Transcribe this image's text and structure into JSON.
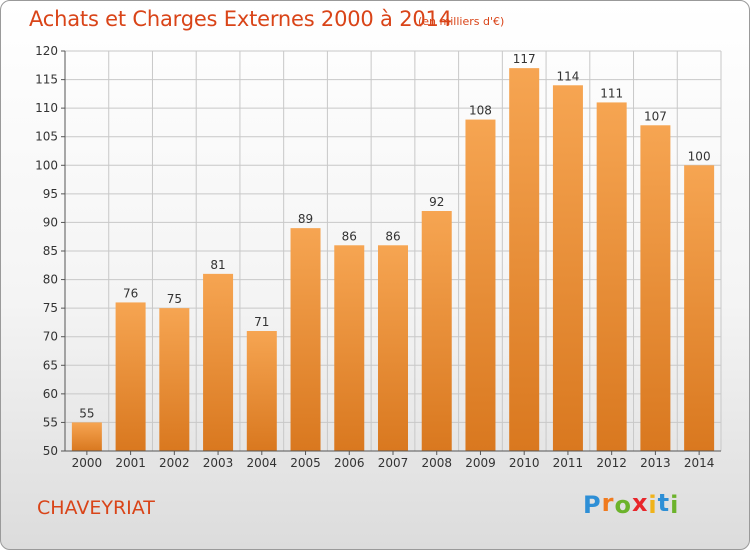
{
  "header": {
    "title": "Achats et Charges Externes 2000 à 2014",
    "subtitle": "(en milliers d'€)"
  },
  "footer": {
    "commune": "CHAVEYRIAT",
    "logo_letters": [
      "P",
      "r",
      "o",
      "x",
      "i",
      "t",
      "i"
    ],
    "logo_colors": [
      "#2e8fd6",
      "#f07a1e",
      "#6cb32b",
      "#e8262b",
      "#f0b31a",
      "#2e8fd6",
      "#6cb32b"
    ]
  },
  "colors": {
    "bar_light": "#f6a552",
    "bar_dark": "#d9781f",
    "grid": "#c8c8c8",
    "axis": "#555555",
    "text": "#333333",
    "accent": "#d94418"
  },
  "chart_data": {
    "type": "bar",
    "title": "Achats et Charges Externes 2000 à 2014",
    "subtitle": "(en milliers d'€)",
    "xlabel": "",
    "ylabel": "",
    "categories": [
      "2000",
      "2001",
      "2002",
      "2003",
      "2004",
      "2005",
      "2006",
      "2007",
      "2008",
      "2009",
      "2010",
      "2011",
      "2012",
      "2013",
      "2014"
    ],
    "values": [
      55,
      76,
      75,
      81,
      71,
      89,
      86,
      86,
      92,
      108,
      117,
      114,
      111,
      107,
      100
    ],
    "ylim": [
      50,
      120
    ],
    "yticks": [
      50,
      55,
      60,
      65,
      70,
      75,
      80,
      85,
      90,
      95,
      100,
      105,
      110,
      115,
      120
    ],
    "grid": true,
    "data_labels": true
  }
}
